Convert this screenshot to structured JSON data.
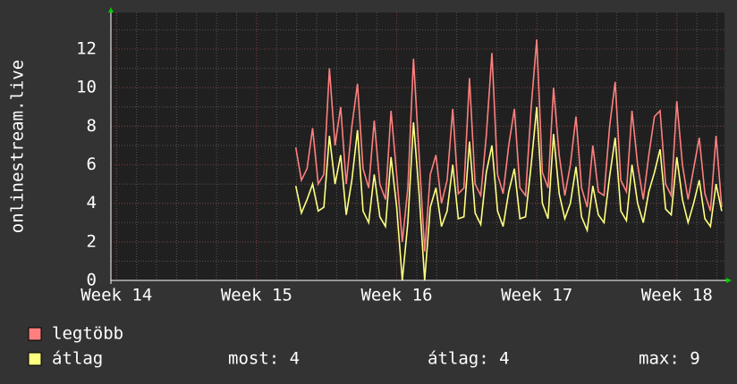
{
  "chart_data": {
    "type": "line",
    "ylabel": "onlinestream.live",
    "x": [
      15.28,
      15.32,
      15.36,
      15.4,
      15.44,
      15.48,
      15.52,
      15.56,
      15.6,
      15.64,
      15.68,
      15.72,
      15.76,
      15.8,
      15.84,
      15.88,
      15.92,
      15.96,
      16.0,
      16.04,
      16.08,
      16.12,
      16.16,
      16.2,
      16.24,
      16.28,
      16.32,
      16.36,
      16.4,
      16.44,
      16.48,
      16.52,
      16.56,
      16.6,
      16.64,
      16.68,
      16.72,
      16.76,
      16.8,
      16.84,
      16.88,
      16.92,
      16.96,
      17.0,
      17.04,
      17.08,
      17.12,
      17.16,
      17.2,
      17.24,
      17.28,
      17.32,
      17.36,
      17.4,
      17.44,
      17.48,
      17.52,
      17.56,
      17.6,
      17.64,
      17.68,
      17.72,
      17.76,
      17.8,
      17.84,
      17.88,
      17.92,
      17.96,
      18.0,
      18.04,
      18.08,
      18.12,
      18.16,
      18.2,
      18.24,
      18.28,
      18.32
    ],
    "series": [
      {
        "name": "legtöbb",
        "color": "#ff7f7f",
        "values": [
          6.9,
          5.2,
          5.8,
          7.9,
          5.0,
          5.5,
          11.0,
          7.0,
          9.0,
          5.0,
          8.0,
          10.2,
          5.8,
          4.8,
          8.3,
          5.0,
          4.2,
          8.8,
          5.5,
          2.0,
          4.8,
          11.5,
          6.5,
          1.5,
          5.5,
          6.5,
          4.0,
          5.2,
          8.9,
          4.5,
          4.8,
          10.5,
          5.0,
          4.4,
          7.5,
          11.8,
          5.5,
          4.5,
          7.0,
          8.9,
          4.8,
          4.4,
          9.0,
          12.5,
          5.6,
          4.8,
          10.0,
          6.5,
          4.4,
          6.0,
          8.5,
          4.8,
          3.8,
          7.0,
          4.6,
          4.4,
          8.0,
          10.3,
          5.2,
          4.6,
          8.8,
          6.0,
          4.2,
          6.5,
          8.5,
          8.8,
          5.0,
          4.4,
          9.3,
          6.0,
          4.2,
          5.8,
          7.4,
          4.5,
          3.6,
          7.5,
          3.8
        ]
      },
      {
        "name": "átlag",
        "color": "#ffff80",
        "values": [
          4.9,
          3.5,
          4.2,
          5.0,
          3.6,
          3.8,
          7.5,
          5.0,
          6.5,
          3.4,
          5.2,
          7.8,
          3.6,
          3.0,
          5.5,
          3.3,
          2.8,
          6.4,
          3.8,
          0.0,
          3.0,
          8.2,
          4.5,
          0.0,
          3.8,
          4.8,
          2.8,
          3.6,
          6.0,
          3.2,
          3.3,
          7.2,
          3.5,
          2.9,
          5.6,
          7.0,
          3.6,
          2.8,
          4.6,
          5.8,
          3.2,
          3.3,
          6.0,
          9.0,
          4.0,
          3.2,
          7.6,
          4.5,
          3.2,
          4.0,
          5.9,
          3.3,
          2.6,
          4.9,
          3.4,
          3.0,
          5.4,
          7.4,
          3.6,
          3.1,
          6.0,
          4.0,
          3.0,
          4.6,
          5.6,
          6.8,
          3.7,
          3.4,
          6.4,
          4.2,
          3.0,
          4.0,
          5.2,
          3.2,
          2.8,
          5.0,
          3.6
        ]
      }
    ],
    "xlim": [
      13.96,
      18.34
    ],
    "xticks": [
      {
        "value": 14,
        "label": "Week 14"
      },
      {
        "value": 15,
        "label": "Week 15"
      },
      {
        "value": 16,
        "label": "Week 16"
      },
      {
        "value": 17,
        "label": "Week 17"
      },
      {
        "value": 18,
        "label": "Week 18"
      }
    ],
    "ylim": [
      0,
      13.9
    ],
    "yticks": [
      0,
      2,
      4,
      6,
      8,
      10,
      12
    ],
    "grid": true,
    "stats": [
      "most: 4",
      "átlag: 4",
      "max: 9"
    ]
  }
}
